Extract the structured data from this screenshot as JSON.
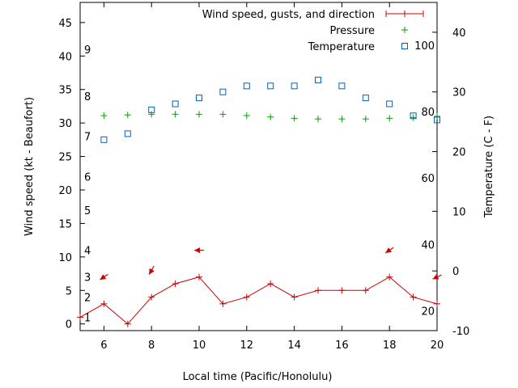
{
  "chart_data": {
    "type": "line",
    "xlabel": "Local time (Pacific/Honolulu)",
    "ylabel": "Wind speed (kt - Beaufort)",
    "y2label": "Temperature (C - F)",
    "xlim": [
      5,
      20
    ],
    "ylim": [
      -1,
      48
    ],
    "y2lim": [
      -10,
      45
    ],
    "x_ticks": [
      6,
      8,
      10,
      12,
      14,
      16,
      18,
      20
    ],
    "y_ticks": [
      0,
      5,
      10,
      15,
      20,
      25,
      30,
      35,
      40,
      45
    ],
    "y2_ticks": [
      -10,
      0,
      10,
      20,
      30,
      40
    ],
    "beaufort_labels": [
      {
        "label": "1",
        "kt": 1
      },
      {
        "label": "2",
        "kt": 4
      },
      {
        "label": "3",
        "kt": 7
      },
      {
        "label": "4",
        "kt": 11
      },
      {
        "label": "5",
        "kt": 17
      },
      {
        "label": "6",
        "kt": 22
      },
      {
        "label": "7",
        "kt": 28
      },
      {
        "label": "8",
        "kt": 34
      },
      {
        "label": "9",
        "kt": 41
      }
    ],
    "fahrenheit_labels": [
      {
        "label": "20",
        "c": -6.7
      },
      {
        "label": "40",
        "c": 4.4
      },
      {
        "label": "60",
        "c": 15.6
      },
      {
        "label": "80",
        "c": 26.7
      },
      {
        "label": "100",
        "c": 37.8
      }
    ],
    "legend_position": "top-right",
    "series": [
      {
        "name": "Wind speed, gusts, and direction",
        "color": "#cc0000",
        "axis": "left",
        "marker": "plus-line",
        "x": [
          5,
          6,
          7,
          8,
          9,
          10,
          11,
          12,
          13,
          14,
          15,
          16,
          17,
          18,
          19,
          20
        ],
        "values": [
          1,
          3,
          0,
          4,
          6,
          7,
          3,
          4,
          6,
          4,
          5,
          5,
          5,
          7,
          4,
          3
        ]
      },
      {
        "name": "Pressure",
        "color": "#00a000",
        "axis": "left",
        "marker": "plus",
        "x": [
          6,
          7,
          8,
          9,
          10,
          11,
          12,
          13,
          14,
          15,
          16,
          17,
          18,
          19,
          20
        ],
        "values": [
          31.1,
          31.2,
          31.3,
          31.3,
          31.3,
          31.3,
          31.1,
          30.9,
          30.7,
          30.6,
          30.6,
          30.6,
          30.7,
          30.8,
          31.0
        ]
      },
      {
        "name": "Temperature",
        "color": "#0060c0",
        "axis": "right",
        "marker": "square",
        "x": [
          6,
          7,
          8,
          9,
          10,
          11,
          12,
          13,
          14,
          15,
          16,
          17,
          18,
          19,
          20
        ],
        "values": [
          22,
          23,
          27,
          28,
          29,
          30,
          31,
          31,
          31,
          32,
          31,
          29,
          28,
          26,
          25.3
        ]
      }
    ],
    "wind_direction_arrows": [
      {
        "x": 6,
        "kt": 7,
        "dir_deg": 56
      },
      {
        "x": 8,
        "kt": 8,
        "dir_deg": 30
      },
      {
        "x": 10,
        "kt": 11,
        "dir_deg": 90
      },
      {
        "x": 18,
        "kt": 11,
        "dir_deg": 56
      },
      {
        "x": 20,
        "kt": 7,
        "dir_deg": 65
      }
    ]
  }
}
